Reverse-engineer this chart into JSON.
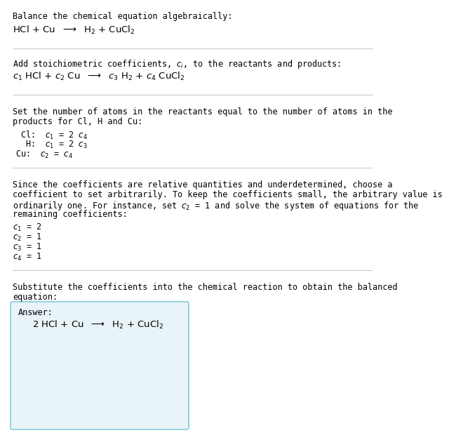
{
  "bg_color": "#ffffff",
  "text_color": "#000000",
  "separator_color": "#cccccc",
  "answer_box_color": "#e8f4f8",
  "answer_box_border": "#88ccdd",
  "fs_body": 8.5,
  "fs_eq": 9.5,
  "sections": {
    "s1_title": "Balance the chemical equation algebraically:",
    "s1_eq": "HCl + Cu  $\\longrightarrow$  H$_2$ + CuCl$_2$",
    "s2_title": "Add stoichiometric coefficients, $c_i$, to the reactants and products:",
    "s2_eq": "$c_1$ HCl + $c_2$ Cu  $\\longrightarrow$  $c_3$ H$_2$ + $c_4$ CuCl$_2$",
    "s3_title1": "Set the number of atoms in the reactants equal to the number of atoms in the",
    "s3_title2": "products for Cl, H and Cu:",
    "s3_eqs": [
      " Cl:  $c_1$ = 2 $c_4$",
      "  H:  $c_1$ = 2 $c_3$",
      "Cu:  $c_2$ = $c_4$"
    ],
    "s4_title1": "Since the coefficients are relative quantities and underdetermined, choose a",
    "s4_title2": "coefficient to set arbitrarily. To keep the coefficients small, the arbitrary value is",
    "s4_title3": "ordinarily one. For instance, set $c_2$ = 1 and solve the system of equations for the",
    "s4_title4": "remaining coefficients:",
    "s4_eqs": [
      "$c_1$ = 2",
      "$c_2$ = 1",
      "$c_3$ = 1",
      "$c_4$ = 1"
    ],
    "s5_title1": "Substitute the coefficients into the chemical reaction to obtain the balanced",
    "s5_title2": "equation:",
    "ans_label": "Answer:",
    "ans_eq": "2 HCl + Cu  $\\longrightarrow$  H$_2$ + CuCl$_2$"
  }
}
